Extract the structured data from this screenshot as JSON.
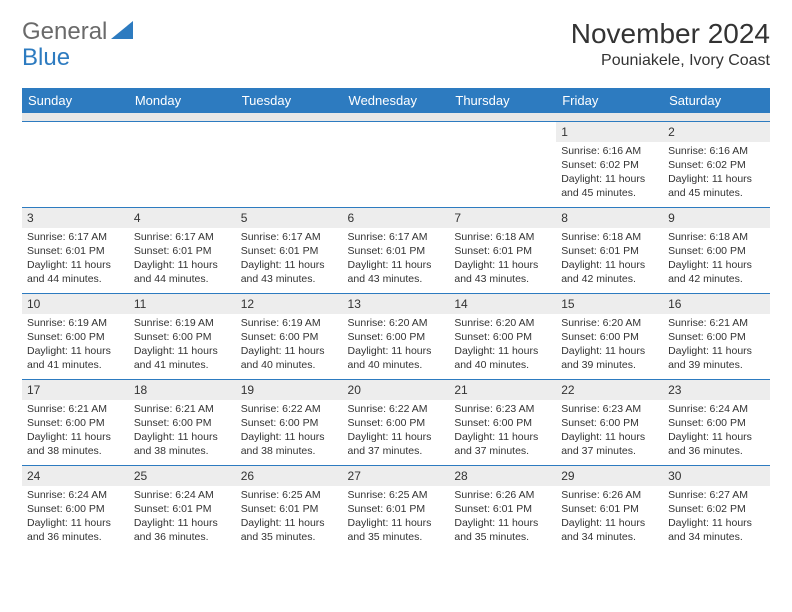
{
  "logo": {
    "part1": "General",
    "part2": "Blue"
  },
  "header": {
    "month_title": "November 2024",
    "location": "Pouniakele, Ivory Coast"
  },
  "colors": {
    "accent": "#2d7bc0",
    "bg": "#ffffff",
    "row_band": "#ededed"
  },
  "day_headers": [
    "Sunday",
    "Monday",
    "Tuesday",
    "Wednesday",
    "Thursday",
    "Friday",
    "Saturday"
  ],
  "weeks": [
    [
      {
        "day": "",
        "sunrise": "",
        "sunset": "",
        "daylight": "",
        "empty": true
      },
      {
        "day": "",
        "sunrise": "",
        "sunset": "",
        "daylight": "",
        "empty": true
      },
      {
        "day": "",
        "sunrise": "",
        "sunset": "",
        "daylight": "",
        "empty": true
      },
      {
        "day": "",
        "sunrise": "",
        "sunset": "",
        "daylight": "",
        "empty": true
      },
      {
        "day": "",
        "sunrise": "",
        "sunset": "",
        "daylight": "",
        "empty": true
      },
      {
        "day": "1",
        "sunrise": "Sunrise: 6:16 AM",
        "sunset": "Sunset: 6:02 PM",
        "daylight": "Daylight: 11 hours and 45 minutes."
      },
      {
        "day": "2",
        "sunrise": "Sunrise: 6:16 AM",
        "sunset": "Sunset: 6:02 PM",
        "daylight": "Daylight: 11 hours and 45 minutes."
      }
    ],
    [
      {
        "day": "3",
        "sunrise": "Sunrise: 6:17 AM",
        "sunset": "Sunset: 6:01 PM",
        "daylight": "Daylight: 11 hours and 44 minutes."
      },
      {
        "day": "4",
        "sunrise": "Sunrise: 6:17 AM",
        "sunset": "Sunset: 6:01 PM",
        "daylight": "Daylight: 11 hours and 44 minutes."
      },
      {
        "day": "5",
        "sunrise": "Sunrise: 6:17 AM",
        "sunset": "Sunset: 6:01 PM",
        "daylight": "Daylight: 11 hours and 43 minutes."
      },
      {
        "day": "6",
        "sunrise": "Sunrise: 6:17 AM",
        "sunset": "Sunset: 6:01 PM",
        "daylight": "Daylight: 11 hours and 43 minutes."
      },
      {
        "day": "7",
        "sunrise": "Sunrise: 6:18 AM",
        "sunset": "Sunset: 6:01 PM",
        "daylight": "Daylight: 11 hours and 43 minutes."
      },
      {
        "day": "8",
        "sunrise": "Sunrise: 6:18 AM",
        "sunset": "Sunset: 6:01 PM",
        "daylight": "Daylight: 11 hours and 42 minutes."
      },
      {
        "day": "9",
        "sunrise": "Sunrise: 6:18 AM",
        "sunset": "Sunset: 6:00 PM",
        "daylight": "Daylight: 11 hours and 42 minutes."
      }
    ],
    [
      {
        "day": "10",
        "sunrise": "Sunrise: 6:19 AM",
        "sunset": "Sunset: 6:00 PM",
        "daylight": "Daylight: 11 hours and 41 minutes."
      },
      {
        "day": "11",
        "sunrise": "Sunrise: 6:19 AM",
        "sunset": "Sunset: 6:00 PM",
        "daylight": "Daylight: 11 hours and 41 minutes."
      },
      {
        "day": "12",
        "sunrise": "Sunrise: 6:19 AM",
        "sunset": "Sunset: 6:00 PM",
        "daylight": "Daylight: 11 hours and 40 minutes."
      },
      {
        "day": "13",
        "sunrise": "Sunrise: 6:20 AM",
        "sunset": "Sunset: 6:00 PM",
        "daylight": "Daylight: 11 hours and 40 minutes."
      },
      {
        "day": "14",
        "sunrise": "Sunrise: 6:20 AM",
        "sunset": "Sunset: 6:00 PM",
        "daylight": "Daylight: 11 hours and 40 minutes."
      },
      {
        "day": "15",
        "sunrise": "Sunrise: 6:20 AM",
        "sunset": "Sunset: 6:00 PM",
        "daylight": "Daylight: 11 hours and 39 minutes."
      },
      {
        "day": "16",
        "sunrise": "Sunrise: 6:21 AM",
        "sunset": "Sunset: 6:00 PM",
        "daylight": "Daylight: 11 hours and 39 minutes."
      }
    ],
    [
      {
        "day": "17",
        "sunrise": "Sunrise: 6:21 AM",
        "sunset": "Sunset: 6:00 PM",
        "daylight": "Daylight: 11 hours and 38 minutes."
      },
      {
        "day": "18",
        "sunrise": "Sunrise: 6:21 AM",
        "sunset": "Sunset: 6:00 PM",
        "daylight": "Daylight: 11 hours and 38 minutes."
      },
      {
        "day": "19",
        "sunrise": "Sunrise: 6:22 AM",
        "sunset": "Sunset: 6:00 PM",
        "daylight": "Daylight: 11 hours and 38 minutes."
      },
      {
        "day": "20",
        "sunrise": "Sunrise: 6:22 AM",
        "sunset": "Sunset: 6:00 PM",
        "daylight": "Daylight: 11 hours and 37 minutes."
      },
      {
        "day": "21",
        "sunrise": "Sunrise: 6:23 AM",
        "sunset": "Sunset: 6:00 PM",
        "daylight": "Daylight: 11 hours and 37 minutes."
      },
      {
        "day": "22",
        "sunrise": "Sunrise: 6:23 AM",
        "sunset": "Sunset: 6:00 PM",
        "daylight": "Daylight: 11 hours and 37 minutes."
      },
      {
        "day": "23",
        "sunrise": "Sunrise: 6:24 AM",
        "sunset": "Sunset: 6:00 PM",
        "daylight": "Daylight: 11 hours and 36 minutes."
      }
    ],
    [
      {
        "day": "24",
        "sunrise": "Sunrise: 6:24 AM",
        "sunset": "Sunset: 6:00 PM",
        "daylight": "Daylight: 11 hours and 36 minutes."
      },
      {
        "day": "25",
        "sunrise": "Sunrise: 6:24 AM",
        "sunset": "Sunset: 6:01 PM",
        "daylight": "Daylight: 11 hours and 36 minutes."
      },
      {
        "day": "26",
        "sunrise": "Sunrise: 6:25 AM",
        "sunset": "Sunset: 6:01 PM",
        "daylight": "Daylight: 11 hours and 35 minutes."
      },
      {
        "day": "27",
        "sunrise": "Sunrise: 6:25 AM",
        "sunset": "Sunset: 6:01 PM",
        "daylight": "Daylight: 11 hours and 35 minutes."
      },
      {
        "day": "28",
        "sunrise": "Sunrise: 6:26 AM",
        "sunset": "Sunset: 6:01 PM",
        "daylight": "Daylight: 11 hours and 35 minutes."
      },
      {
        "day": "29",
        "sunrise": "Sunrise: 6:26 AM",
        "sunset": "Sunset: 6:01 PM",
        "daylight": "Daylight: 11 hours and 34 minutes."
      },
      {
        "day": "30",
        "sunrise": "Sunrise: 6:27 AM",
        "sunset": "Sunset: 6:02 PM",
        "daylight": "Daylight: 11 hours and 34 minutes."
      }
    ]
  ]
}
